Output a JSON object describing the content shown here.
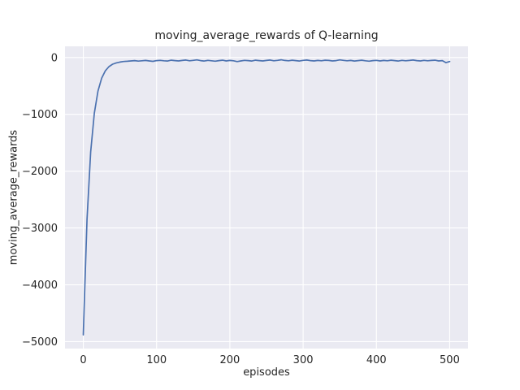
{
  "chart_data": {
    "type": "line",
    "title": "moving_average_rewards of Q-learning",
    "xlabel": "episodes",
    "ylabel": "moving_average_rewards",
    "xlim": [
      -25,
      525
    ],
    "ylim": [
      -5122,
      197
    ],
    "x_ticks": [
      0,
      100,
      200,
      300,
      400,
      500
    ],
    "x_tick_labels": [
      "0",
      "100",
      "200",
      "300",
      "400",
      "500"
    ],
    "y_ticks": [
      0,
      -1000,
      -2000,
      -3000,
      -4000,
      -5000
    ],
    "y_tick_labels": [
      "0",
      "−1000",
      "−2000",
      "−3000",
      "−4000",
      "−5000"
    ],
    "grid": true,
    "legend": "none",
    "style": {
      "figure_background": "#ffffff",
      "axes_background": "#eaeaf2",
      "grid_color": "#ffffff",
      "line_color": "#4c72b0",
      "text_color": "#262626"
    },
    "series": [
      {
        "name": "moving_average_rewards",
        "x": [
          0,
          5,
          10,
          15,
          20,
          25,
          30,
          35,
          40,
          45,
          50,
          55,
          60,
          65,
          70,
          75,
          80,
          85,
          90,
          95,
          100,
          105,
          110,
          115,
          120,
          125,
          130,
          135,
          140,
          145,
          150,
          155,
          160,
          165,
          170,
          175,
          180,
          185,
          190,
          195,
          200,
          205,
          210,
          215,
          220,
          225,
          230,
          235,
          240,
          245,
          250,
          255,
          260,
          265,
          270,
          275,
          280,
          285,
          290,
          295,
          300,
          305,
          310,
          315,
          320,
          325,
          330,
          335,
          340,
          345,
          350,
          355,
          360,
          365,
          370,
          375,
          380,
          385,
          390,
          395,
          400,
          405,
          410,
          415,
          420,
          425,
          430,
          435,
          440,
          445,
          450,
          455,
          460,
          465,
          470,
          475,
          480,
          485,
          490,
          495,
          500
        ],
        "y": [
          -4880,
          -2850,
          -1660,
          -980,
          -590,
          -365,
          -235,
          -160,
          -118,
          -95,
          -80,
          -70,
          -66,
          -60,
          -55,
          -63,
          -58,
          -52,
          -60,
          -68,
          -55,
          -50,
          -58,
          -62,
          -48,
          -55,
          -60,
          -52,
          -45,
          -58,
          -50,
          -42,
          -55,
          -62,
          -50,
          -58,
          -65,
          -55,
          -48,
          -60,
          -52,
          -58,
          -72,
          -60,
          -50,
          -55,
          -62,
          -48,
          -55,
          -60,
          -52,
          -45,
          -58,
          -50,
          -40,
          -52,
          -58,
          -48,
          -55,
          -62,
          -50,
          -44,
          -55,
          -60,
          -52,
          -58,
          -48,
          -52,
          -60,
          -55,
          -42,
          -50,
          -58,
          -52,
          -62,
          -55,
          -48,
          -58,
          -65,
          -55,
          -50,
          -60,
          -52,
          -58,
          -48,
          -55,
          -62,
          -50,
          -58,
          -52,
          -45,
          -55,
          -60,
          -50,
          -58,
          -52,
          -48,
          -60,
          -55,
          -90,
          -70
        ]
      }
    ]
  }
}
